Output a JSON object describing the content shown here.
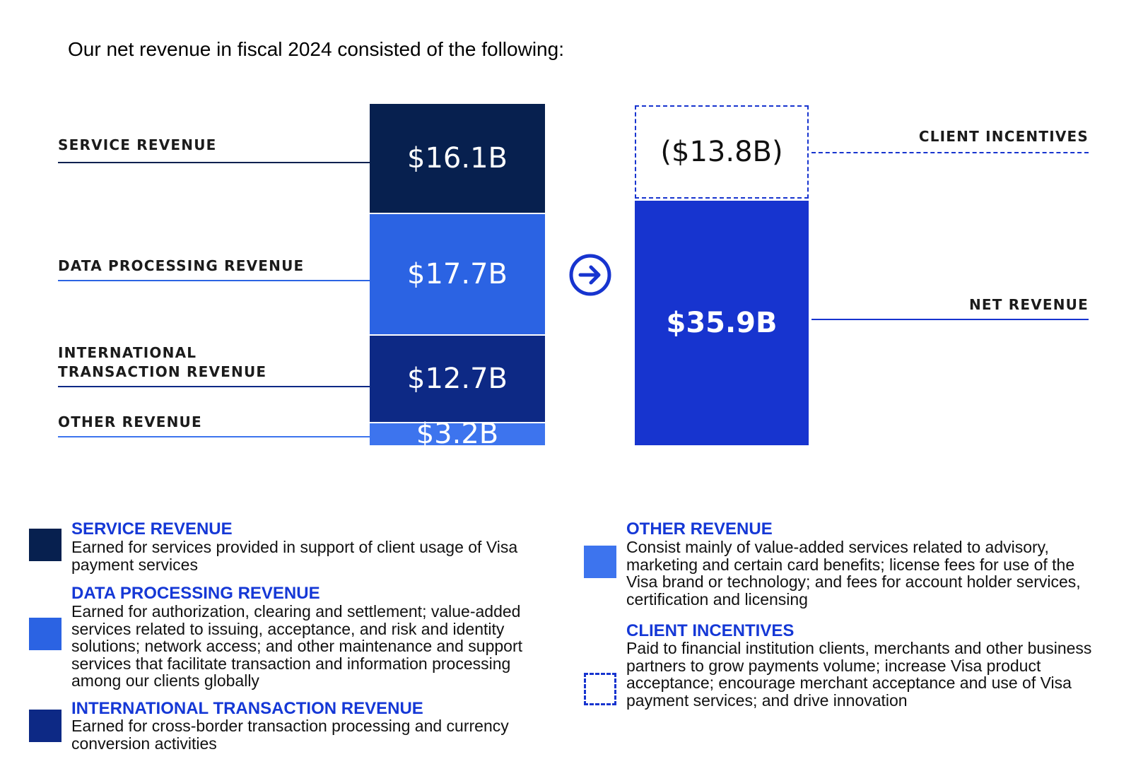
{
  "intro": "Our net revenue in fiscal 2024 consisted of the following:",
  "chart_data": {
    "type": "waterfall",
    "title": "Our net revenue in fiscal 2024 consisted of the following:",
    "unit": "$B",
    "gross_stack": [
      {
        "name": "SERVICE REVENUE",
        "value": 16.1,
        "label": "$16.1B",
        "color": "#07204f"
      },
      {
        "name": "DATA PROCESSING REVENUE",
        "value": 17.7,
        "label": "$17.7B",
        "color": "#2b63e3"
      },
      {
        "name": "INTERNATIONAL TRANSACTION REVENUE",
        "value": 12.7,
        "label": "$12.7B",
        "color": "#0d2985"
      },
      {
        "name": "OTHER REVENUE",
        "value": 3.2,
        "label": "$3.2B",
        "color": "#3d74ee"
      }
    ],
    "deduction": {
      "name": "CLIENT INCENTIVES",
      "value": -13.8,
      "label": "($13.8B)"
    },
    "result": {
      "name": "NET REVENUE",
      "value": 35.9,
      "label": "$35.9B",
      "color": "#1734cf"
    }
  },
  "labels": {
    "service": "SERVICE REVENUE",
    "data_processing": "DATA PROCESSING REVENUE",
    "international_line1": "INTERNATIONAL",
    "international_line2": "TRANSACTION REVENUE",
    "other": "OTHER REVENUE",
    "client_incentives": "CLIENT INCENTIVES",
    "net_revenue": "NET REVENUE"
  },
  "icons": {
    "arrow": "arrow-right-circle-icon"
  },
  "legend": [
    {
      "title": "SERVICE REVENUE",
      "lines": [
        "Earned for services provided in support of client usage of Visa",
        "payment services"
      ],
      "swatch": "#07204f"
    },
    {
      "title": "DATA PROCESSING REVENUE",
      "lines": [
        "Earned for authorization, clearing and settlement; value-added",
        "services related to issuing, acceptance, and risk and identity",
        "solutions; network access; and other maintenance and support",
        "services that facilitate transaction and information processing",
        "among our clients globally"
      ],
      "swatch": "#2b63e3"
    },
    {
      "title": "INTERNATIONAL TRANSACTION REVENUE",
      "lines": [
        "Earned for cross-border transaction processing and currency",
        "conversion activities"
      ],
      "swatch": "#0d2985"
    },
    {
      "title": "OTHER REVENUE",
      "lines": [
        "Consist mainly of value-added services related to advisory,",
        "marketing and certain card benefits; license fees for use of the",
        "Visa brand or technology; and fees for account holder services,",
        "certification and licensing"
      ],
      "swatch": "#3d74ee"
    },
    {
      "title": "CLIENT INCENTIVES",
      "lines": [
        "Paid to financial institution clients, merchants and other business",
        "partners to grow payments volume; increase Visa product",
        "acceptance; encourage merchant acceptance and use of Visa",
        "payment services; and drive innovation"
      ],
      "swatch": "#1734cf"
    }
  ]
}
